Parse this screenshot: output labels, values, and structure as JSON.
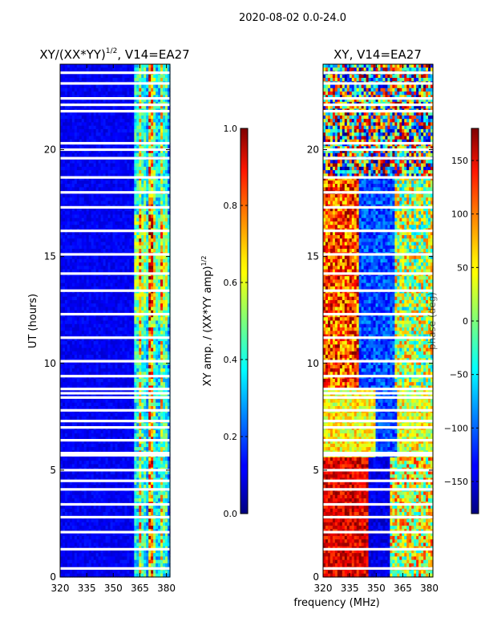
{
  "header": {
    "date_range": "2020-08-02 0.0-24.0"
  },
  "chart_data": [
    {
      "type": "heatmap",
      "title_main": "XY/(XX*YY)",
      "title_sup": "1/2",
      "title_rest": ", V14=EA27",
      "xlabel": "",
      "ylabel": "UT (hours)",
      "xlim": [
        320,
        382
      ],
      "ylim": [
        0,
        24
      ],
      "xticks": [
        "320",
        "335",
        "350",
        "365",
        "380"
      ],
      "xtick_values": [
        320,
        335,
        350,
        365,
        380
      ],
      "yticks": [
        "0",
        "5",
        "10",
        "15",
        "20"
      ],
      "ytick_values": [
        0,
        5,
        10,
        15,
        20
      ],
      "colorbar": {
        "label_main": "XY amp. / (XX*YY amp)",
        "label_sup": "1/2",
        "range": [
          0.0,
          1.0
        ],
        "ticks": [
          "0.0",
          "0.2",
          "0.4",
          "0.6",
          "0.8",
          "1.0"
        ],
        "tick_values": [
          0.0,
          0.2,
          0.4,
          0.6,
          0.8,
          1.0
        ]
      },
      "colormap": "jet",
      "flagged_hours": [
        0.4,
        1.3,
        2.1,
        2.8,
        3.4,
        4.1,
        4.5,
        5.0,
        5.7,
        5.8,
        6.4,
        7.0,
        7.3,
        7.8,
        8.4,
        8.6,
        8.8,
        9.4,
        10.1,
        11.2,
        12.3,
        13.4,
        14.2,
        15.1,
        16.2,
        17.3,
        18.0,
        18.7,
        19.6,
        20.0,
        20.3,
        21.8,
        22.1,
        22.4,
        23.1,
        23.6
      ]
    },
    {
      "type": "heatmap",
      "title_main": "XY, V14=EA27",
      "xlabel": "frequency (MHz)",
      "ylabel": "",
      "xlim": [
        320,
        382
      ],
      "ylim": [
        0,
        24
      ],
      "xticks": [
        "320",
        "335",
        "350",
        "365",
        "380"
      ],
      "xtick_values": [
        320,
        335,
        350,
        365,
        380
      ],
      "yticks": [
        "0",
        "5",
        "10",
        "15",
        "20"
      ],
      "ytick_values": [
        0,
        5,
        10,
        15,
        20
      ],
      "colorbar": {
        "label": "phase (deg)",
        "range": [
          -180,
          180
        ],
        "ticks": [
          "−150",
          "−100",
          "−50",
          "0",
          "50",
          "100",
          "150"
        ],
        "tick_values": [
          -150,
          -100,
          -50,
          0,
          50,
          100,
          150
        ]
      },
      "colormap": "jet",
      "flagged_hours": [
        0.4,
        1.3,
        2.1,
        2.8,
        3.4,
        4.1,
        4.5,
        5.0,
        5.7,
        5.8,
        6.4,
        7.0,
        7.3,
        7.8,
        8.4,
        8.6,
        8.8,
        9.4,
        10.1,
        11.2,
        12.3,
        13.4,
        14.2,
        15.1,
        16.2,
        17.3,
        18.0,
        18.7,
        19.6,
        20.0,
        20.3,
        21.8,
        22.1,
        22.4,
        23.1,
        23.6
      ]
    }
  ]
}
